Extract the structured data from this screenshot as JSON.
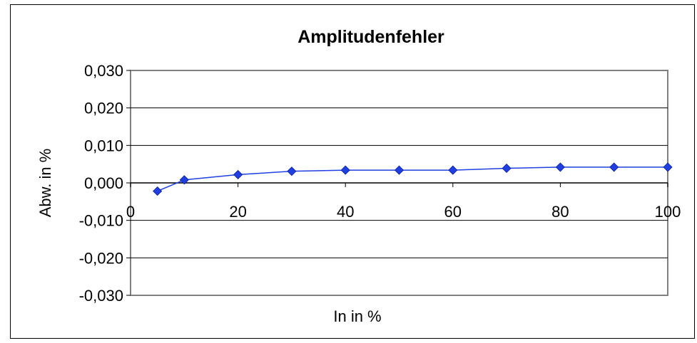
{
  "chart_data": {
    "type": "line",
    "title": "Amplitudenfehler",
    "xlabel": "In in %",
    "ylabel": "Abw. in %",
    "xlim": [
      0,
      100
    ],
    "ylim": [
      -0.03,
      0.03
    ],
    "x_ticks": [
      0,
      20,
      40,
      60,
      80,
      100
    ],
    "x_tick_labels": [
      "0",
      "20",
      "40",
      "60",
      "80",
      "100"
    ],
    "y_ticks": [
      0.03,
      0.02,
      0.01,
      0.0,
      -0.01,
      -0.02,
      -0.03
    ],
    "y_tick_labels": [
      "0,030",
      "0,020",
      "0,010",
      "0,000",
      "-0,010",
      "-0,020",
      "-0,030"
    ],
    "grid": "horizontal",
    "legend": "none",
    "series": [
      {
        "color": "#1f3fe0",
        "marker": "diamond",
        "x": [
          5,
          10,
          20,
          30,
          40,
          50,
          60,
          70,
          80,
          90,
          100
        ],
        "y": [
          -0.0022,
          0.0008,
          0.0022,
          0.0031,
          0.0034,
          0.0034,
          0.0034,
          0.0039,
          0.0042,
          0.0042,
          0.0042
        ]
      }
    ]
  }
}
